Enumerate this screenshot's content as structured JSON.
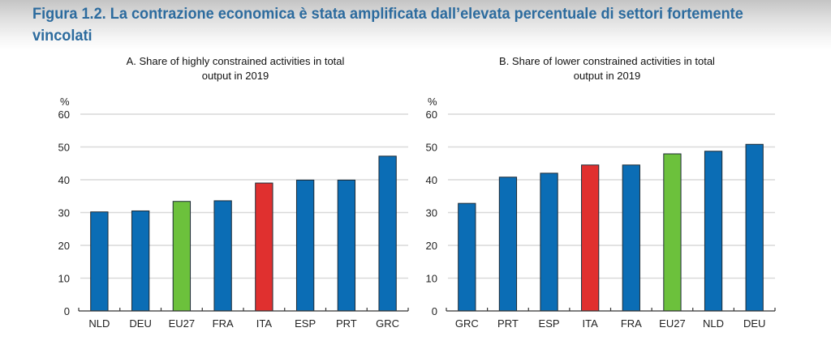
{
  "figure": {
    "title_line1": "Figura 1.2.  La contrazione economica è stata amplificata dall’elevata percentuale di settori fortemente",
    "title_line2": "vincolati"
  },
  "colors": {
    "default_bar": "#0b6db5",
    "eu27_bar": "#6cc13c",
    "ita_bar": "#e0302f",
    "title": "#2c6b9e"
  },
  "chart_data": [
    {
      "type": "bar",
      "title": "A. Share of highly constrained activities  in total output in 2019",
      "title_lines": [
        "A. Share of highly constrained activities  in total",
        "output in 2019"
      ],
      "xlabel": "",
      "ylabel": "%",
      "ylim": [
        0,
        60
      ],
      "yticks": [
        0,
        10,
        20,
        30,
        40,
        50,
        60
      ],
      "grid": true,
      "categories": [
        "NLD",
        "DEU",
        "EU27",
        "FRA",
        "ITA",
        "ESP",
        "PRT",
        "GRC"
      ],
      "values": [
        30.2,
        30.5,
        33.4,
        33.6,
        39.0,
        39.9,
        39.9,
        47.2
      ],
      "highlight": {
        "EU27": "eu27_bar",
        "ITA": "ita_bar"
      }
    },
    {
      "type": "bar",
      "title": "B. Share of lower constrained activities  in total output in 2019",
      "title_lines": [
        "B. Share of lower constrained activities  in total",
        "output in 2019"
      ],
      "xlabel": "",
      "ylabel": "%",
      "ylim": [
        0,
        60
      ],
      "yticks": [
        0,
        10,
        20,
        30,
        40,
        50,
        60
      ],
      "grid": true,
      "categories": [
        "GRC",
        "PRT",
        "ESP",
        "ITA",
        "FRA",
        "EU27",
        "NLD",
        "DEU"
      ],
      "values": [
        32.8,
        40.8,
        42.0,
        44.5,
        44.5,
        47.9,
        48.7,
        50.8
      ],
      "highlight": {
        "EU27": "eu27_bar",
        "ITA": "ita_bar"
      }
    }
  ]
}
